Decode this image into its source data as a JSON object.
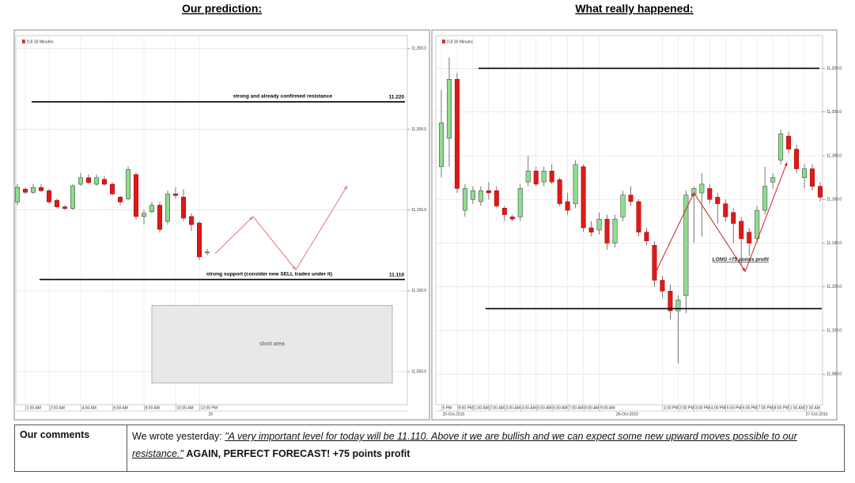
{
  "chart_data": [
    {
      "type": "candlestick",
      "title": "Our prediction:",
      "symbol": "DJI 30 Minutes",
      "up_color": "#8fdc8f",
      "down_color": "#dd1a1a",
      "grid": true,
      "categories": [
        null,
        "1:00 AM",
        null,
        null,
        "2:00 AM",
        null,
        null,
        null,
        "4:00 AM",
        null,
        null,
        null,
        "6:00 AM",
        null,
        null,
        null,
        "8:00 AM",
        null,
        null,
        null,
        "10:00 AM",
        null,
        null,
        "12:00 PM",
        null
      ],
      "dates": [
        null,
        null,
        null,
        null,
        null,
        null,
        null,
        null,
        null,
        null,
        null,
        null,
        null,
        null,
        null,
        null,
        null,
        null,
        null,
        null,
        null,
        null,
        null,
        null,
        "26"
      ],
      "open": [
        11155,
        11163,
        11161,
        11164,
        11162,
        11156,
        11152,
        11151,
        11166,
        11170,
        11166,
        11169,
        11166,
        11158,
        11157,
        11172,
        11146,
        11149,
        11153,
        11143,
        11160,
        11158,
        11146,
        11142,
        11124
      ],
      "high": [
        11166,
        11164,
        11166,
        11166,
        11163,
        11157,
        11153,
        11166,
        11173,
        11172,
        11172,
        11171,
        11167,
        11159,
        11177,
        11173,
        11150,
        11155,
        11155,
        11162,
        11164,
        11163,
        11148,
        11143,
        11126
      ],
      "low": [
        11153,
        11160,
        11160,
        11161,
        11154,
        11151,
        11150,
        11150,
        11165,
        11166,
        11165,
        11165,
        11159,
        11153,
        11156,
        11144,
        11141,
        11148,
        11136,
        11141,
        11157,
        11143,
        11137,
        11119,
        11122
      ],
      "close": [
        11164,
        11161,
        11164,
        11162,
        11155,
        11152,
        11151,
        11165,
        11170,
        11167,
        11170,
        11166,
        11160,
        11155,
        11175,
        11146,
        11148,
        11153,
        11138,
        11160,
        11159,
        11145,
        11141,
        11121,
        11124
      ],
      "xlim": [
        -0.2,
        49.3
      ],
      "ylim": [
        11029.5,
        11258
      ],
      "yticks": [
        {
          "value": 11050,
          "label": "11,050.0"
        },
        {
          "value": 11100,
          "label": "11,100.0"
        },
        {
          "value": 11150,
          "label": "11,150.0"
        },
        {
          "value": 11200,
          "label": "11,200.0"
        },
        {
          "value": 11250,
          "label": "11,250.0"
        }
      ],
      "levels": [
        {
          "value": 11217,
          "xrange": [
            1.8,
            49
          ],
          "text": "strong and already confirmed resistance",
          "label": "11.220"
        },
        {
          "value": 11107,
          "xrange": [
            2.8,
            49
          ],
          "text": "strong support (consider new SELL trades under it)",
          "label": "11.110"
        }
      ],
      "arrow": {
        "color": "#e07a7a",
        "x": [
          25,
          29.8,
          35.2,
          41.7
        ],
        "y": [
          11123,
          11146,
          11113,
          11165
        ]
      },
      "region": {
        "text": "short area",
        "x": [
          17,
          47.4
        ],
        "y": [
          11043,
          11091
        ]
      }
    },
    {
      "type": "candlestick",
      "title": "What really happened:",
      "symbol": "DJI 30 Minutes",
      "up_color": "#8fdc8f",
      "down_color": "#dd1a1a",
      "grid": true,
      "categories": [
        "6 PM",
        null,
        "8:00 PM",
        null,
        "1:00 AM",
        null,
        "2:00 AM",
        null,
        "3:00 AM",
        null,
        "4:00 AM",
        null,
        "5:00 AM",
        null,
        "6:00 AM",
        null,
        "7:00 AM",
        null,
        "8:00 AM",
        null,
        "9:00 AM",
        null,
        null,
        null,
        null,
        null,
        null,
        null,
        "1:00 PM",
        null,
        "2:00 PM",
        null,
        "3:00 PM",
        null,
        "4:00 PM",
        null,
        "5:00 PM",
        null,
        "6:00 PM",
        null,
        "7:00 PM",
        null,
        "8:00 PM",
        null,
        "1:00 AM",
        null,
        "2:00 AM",
        null,
        null
      ],
      "dates": [
        "25-Oct-2010",
        null,
        null,
        null,
        null,
        null,
        null,
        null,
        null,
        null,
        null,
        null,
        null,
        null,
        null,
        null,
        null,
        null,
        null,
        null,
        null,
        null,
        "26-Oct-2010",
        null,
        null,
        null,
        null,
        null,
        null,
        null,
        null,
        null,
        null,
        null,
        null,
        null,
        null,
        null,
        null,
        null,
        null,
        null,
        null,
        null,
        null,
        null,
        "27-Oct-2010",
        null,
        null
      ],
      "open": [
        11175,
        11188,
        11215,
        11155,
        11160,
        11159,
        11164,
        11164,
        11156,
        11152,
        11152,
        11168,
        11173,
        11168,
        11173,
        11169,
        11159,
        11158,
        11175,
        11147,
        11146,
        11151,
        11140,
        11152,
        11162,
        11159,
        11145,
        11139,
        11123,
        11118,
        11109,
        11116,
        11162,
        11163,
        11165,
        11161,
        11158,
        11154,
        11150,
        11145,
        11142,
        11155,
        11168,
        11178,
        11189,
        11183,
        11170,
        11174,
        11166
      ],
      "high": [
        11210,
        11225,
        11218,
        11167,
        11166,
        11166,
        11168,
        11166,
        11157,
        11153,
        11167,
        11180,
        11175,
        11175,
        11176,
        11170,
        11163,
        11178,
        11176,
        11150,
        11154,
        11153,
        11153,
        11164,
        11166,
        11160,
        11147,
        11141,
        11125,
        11121,
        11116,
        11164,
        11166,
        11172,
        11167,
        11163,
        11160,
        11156,
        11152,
        11147,
        11157,
        11175,
        11172,
        11192,
        11191,
        11185,
        11176,
        11176,
        11168
      ],
      "low": [
        11170,
        11175,
        11163,
        11152,
        11158,
        11157,
        11160,
        11156,
        11150,
        11150,
        11150,
        11166,
        11166,
        11166,
        11167,
        11157,
        11153,
        11156,
        11145,
        11143,
        11144,
        11137,
        11138,
        11150,
        11157,
        11143,
        11139,
        11120,
        11115,
        11105,
        11085,
        11108,
        11140,
        11143,
        11158,
        11149,
        11150,
        11140,
        11130,
        11134,
        11140,
        11153,
        11165,
        11176,
        11181,
        11172,
        11165,
        11164,
        11159
      ],
      "close": [
        11195,
        11215,
        11165,
        11165,
        11164,
        11164,
        11163,
        11157,
        11153,
        11151,
        11165,
        11173,
        11167,
        11173,
        11168,
        11158,
        11155,
        11176,
        11147,
        11145,
        11151,
        11140,
        11151,
        11162,
        11159,
        11145,
        11141,
        11123,
        11118,
        11109,
        11114,
        11162,
        11165,
        11167,
        11160,
        11158,
        11152,
        11149,
        11142,
        11140,
        11155,
        11166,
        11170,
        11190,
        11183,
        11174,
        11174,
        11166,
        11161
      ],
      "xlim": [
        -0.7,
        48.3
      ],
      "ylim": [
        11066,
        11235
      ],
      "yticks": [
        {
          "value": 11080,
          "label": "11,080.0"
        },
        {
          "value": 11100,
          "label": "11,100.0"
        },
        {
          "value": 11120,
          "label": "11,120.0"
        },
        {
          "value": 11140,
          "label": "11,140.0"
        },
        {
          "value": 11160,
          "label": "11,160.0"
        },
        {
          "value": 11180,
          "label": "11,180.0"
        },
        {
          "value": 11200,
          "label": "11,200.0"
        },
        {
          "value": 11220,
          "label": "11,220.0"
        }
      ],
      "levels": [
        {
          "value": 11220,
          "xrange": [
            4.7,
            47.9
          ]
        },
        {
          "value": 11110,
          "xrange": [
            5.6,
            48.2
          ]
        }
      ],
      "arrow": {
        "color": "#cc2222",
        "text": "LONG +75 points profit",
        "x": [
          26.8,
          32,
          38.5,
          43.8
        ],
        "y": [
          11124,
          11163,
          11127,
          11177
        ]
      }
    }
  ],
  "comments": {
    "label": "Our comments",
    "intro": "We wrote yesterday: ",
    "quote": "\"A very important level for today will be 11.110. Above it we are bullish and we can expect some new upward moves possible to our resistance.\"",
    "highlight": "AGAIN, PERFECT FORECAST! +75 points profit"
  }
}
